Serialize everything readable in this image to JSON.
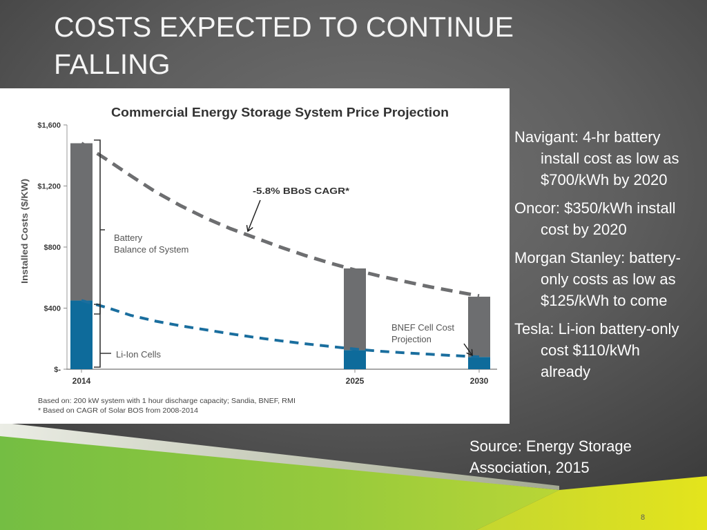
{
  "slide": {
    "title": "COSTS EXPECTED TO CONTINUE FALLING",
    "bullets": [
      "Navigant: 4-hr battery install cost as low as $700/kWh by 2020",
      "Oncor: $350/kWh install cost by 2020",
      "Morgan Stanley: battery-only costs as low as $125/kWh to come",
      "Tesla: Li-ion battery-only cost $110/kWh already"
    ],
    "source": "Source: Energy Storage Association, 2015",
    "page_number": "8"
  },
  "colors": {
    "background": "#5e5e5e",
    "text": "#ffffff",
    "accent_green": "#8cc63f",
    "accent_yellow": "#d9e021"
  },
  "chart_data": {
    "type": "bar",
    "stacked": true,
    "title": "Commercial Energy Storage System Price Projection",
    "xlabel": "",
    "ylabel": "Installed Costs ($/KW)",
    "x": [
      2014,
      2025,
      2030
    ],
    "x_tick_labels": [
      "2014",
      "2025",
      "2030"
    ],
    "xlim": [
      2014,
      2030
    ],
    "ylim": [
      0,
      1600
    ],
    "y_ticks": [
      0,
      400,
      800,
      1200,
      1600
    ],
    "y_tick_labels": [
      "$-",
      "$400",
      "$800",
      "$1,200",
      "$1,600"
    ],
    "grid": false,
    "series": [
      {
        "label": [
          "Li-Ion Cells"
        ],
        "values": [
          450,
          125,
          80
        ],
        "color": "#0e6b9b"
      },
      {
        "label": [
          "Battery",
          "Balance of System"
        ],
        "values": [
          1030,
          535,
          395
        ],
        "color": "#6d6e70"
      }
    ],
    "lines": [
      {
        "x": [
          2014,
          2015,
          2016,
          2017,
          2018,
          2019,
          2020,
          2021,
          2022,
          2023,
          2024,
          2025,
          2026,
          2027,
          2028,
          2029,
          2030
        ],
        "values": [
          1480,
          1375,
          1265,
          1160,
          1070,
          990,
          920,
          860,
          800,
          745,
          695,
          650,
          610,
          575,
          540,
          510,
          480
        ],
        "dashed": true,
        "color": "#6d6e70"
      },
      {
        "x": [
          2014,
          2015,
          2016,
          2017,
          2018,
          2019,
          2020,
          2021,
          2022,
          2023,
          2024,
          2025,
          2026,
          2027,
          2028,
          2029,
          2030
        ],
        "values": [
          450,
          405,
          352,
          314,
          284,
          258,
          232,
          208,
          186,
          167,
          149,
          132,
          118,
          107,
          98,
          89,
          81
        ],
        "dashed": true,
        "color": "#1a6e9e"
      }
    ],
    "annotations": [
      {
        "lines": [
          "-5.8% BBoS CAGR*"
        ]
      },
      {
        "lines": [
          "BNEF Cell Cost",
          "Projection"
        ]
      }
    ],
    "notes": [
      "Based on: 200 kW system with 1 hour discharge capacity; Sandia, BNEF, RMI",
      "* Based on CAGR of Solar BOS from 2008-2014"
    ]
  }
}
